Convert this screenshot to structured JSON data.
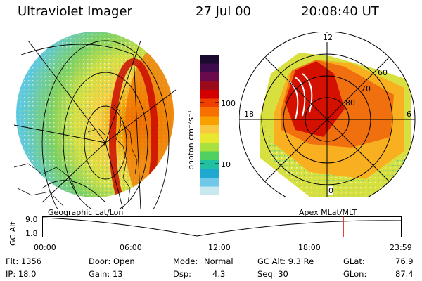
{
  "header": {
    "instrument": "Ultraviolet Imager",
    "date": "27 Jul 00",
    "time": "20:08:40 UT"
  },
  "colorbar": {
    "unit_label": "photon cm⁻²s⁻¹",
    "tick_high": "100",
    "tick_low": "10",
    "colors": [
      "#1a0a2e",
      "#3d0a4d",
      "#6a0a4d",
      "#9a0a1a",
      "#d40000",
      "#f04000",
      "#f87000",
      "#f8a000",
      "#f8c840",
      "#e8e830",
      "#a8e040",
      "#50d060",
      "#20c0a0",
      "#20a8d0",
      "#70c8e8",
      "#c8e8f0"
    ]
  },
  "polar_labels": {
    "mlt_12": "12",
    "mlt_18": "18",
    "mlt_6": "6",
    "mlt_0": "0",
    "lat_60": "60",
    "lat_70": "70",
    "lat_80": "80"
  },
  "timeline": {
    "left_label": "Geographic Lat/Lon",
    "right_label": "Apex MLat/MLT",
    "axis_title": "GC Alt",
    "y_max": "9.0",
    "y_min": "1.8",
    "x_ticks": [
      "00:00",
      "06:00",
      "12:00",
      "18:00",
      "23:59"
    ],
    "marker_time_hours": 20.14
  },
  "info": {
    "flt": "Flt: 1356",
    "ip": "IP: 18.0",
    "door": "Door: Open",
    "gain": "Gain: 13",
    "mode_label": "Mode:",
    "mode_value": "Normal",
    "dsp_label": "Dsp:",
    "dsp_value": "4.3",
    "gc_alt": "GC Alt: 9.3 Re",
    "seq": "Seq: 30",
    "glat_label": "GLat:",
    "glat_value": "76.9",
    "glon_label": "GLon:",
    "glon_value": "87.4"
  }
}
